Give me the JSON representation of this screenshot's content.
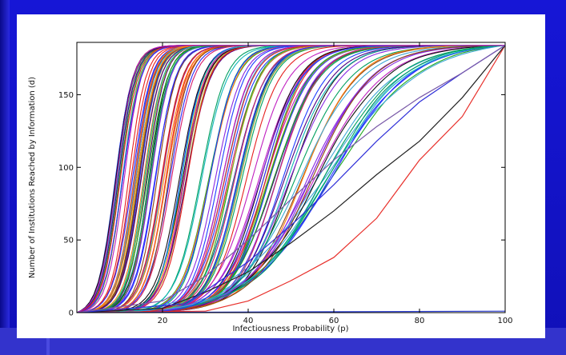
{
  "chart_data": {
    "type": "line",
    "title": "",
    "xlabel": "Infectiousness Probability (p)",
    "ylabel": "Number of Institutions Reached by Information (d)",
    "xlim": [
      0,
      100
    ],
    "ylim": [
      0,
      186
    ],
    "x_ticks": [
      "20",
      "40",
      "60",
      "80",
      "100"
    ],
    "y_ticks": [
      "0",
      "50",
      "100",
      "150"
    ],
    "grid": false,
    "legend": "none",
    "max_value": 184,
    "curve_family": {
      "count": 140,
      "description_of_shape": "sigmoid",
      "midpoint_range_p": [
        9,
        60
      ],
      "steepness_range": [
        0.09,
        0.5
      ]
    },
    "highlighted_series": [
      {
        "color": "#e8302b",
        "x": [
          0,
          30,
          40,
          50,
          60,
          70,
          80,
          90,
          100
        ],
        "y": [
          0,
          1,
          8,
          22,
          38,
          65,
          105,
          135,
          184
        ]
      },
      {
        "color": "#222222",
        "x": [
          0,
          20,
          30,
          40,
          50,
          60,
          70,
          80,
          90,
          100
        ],
        "y": [
          0,
          3,
          14,
          28,
          48,
          70,
          95,
          118,
          148,
          184
        ]
      },
      {
        "color": "#2f2fd8",
        "x": [
          0,
          25,
          30,
          40,
          50,
          60,
          70,
          80,
          90,
          100
        ],
        "y": [
          0,
          6,
          15,
          35,
          60,
          88,
          118,
          145,
          165,
          184
        ]
      },
      {
        "color": "#7a5aa8",
        "x": [
          0,
          20,
          30,
          40,
          50,
          60,
          70,
          80,
          90,
          100
        ],
        "y": [
          0,
          8,
          25,
          50,
          78,
          105,
          128,
          148,
          165,
          184
        ]
      },
      {
        "color": "#2a3cd0",
        "x": [
          0,
          100
        ],
        "y": [
          0,
          1
        ]
      }
    ],
    "palette": [
      "#1f3cff",
      "#22aa22",
      "#e62020",
      "#14b8b8",
      "#c020c0",
      "#a8a820",
      "#111111",
      "#2a2aff",
      "#ff7f0e",
      "#8a2be2",
      "#00a060",
      "#d41c6c",
      "#3fa7d6",
      "#8b4513",
      "#4b0082"
    ]
  }
}
